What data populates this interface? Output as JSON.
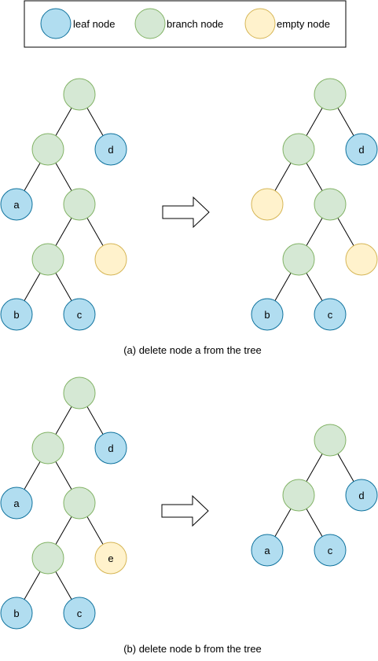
{
  "legend": {
    "leaf": "leaf node",
    "branch": "branch node",
    "empty": "empty node"
  },
  "colors": {
    "leaf_fill": "#b1ddf0",
    "branch_fill": "#d5e8d4",
    "empty_fill": "#fff2cc"
  },
  "nodes": {
    "a": "a",
    "b": "b",
    "c": "c",
    "d": "d",
    "e": "e"
  },
  "captions": {
    "a": "(a) delete node a from the tree",
    "b": "(b) delete node b from the tree"
  },
  "arrow_icon": "right-arrow-icon"
}
